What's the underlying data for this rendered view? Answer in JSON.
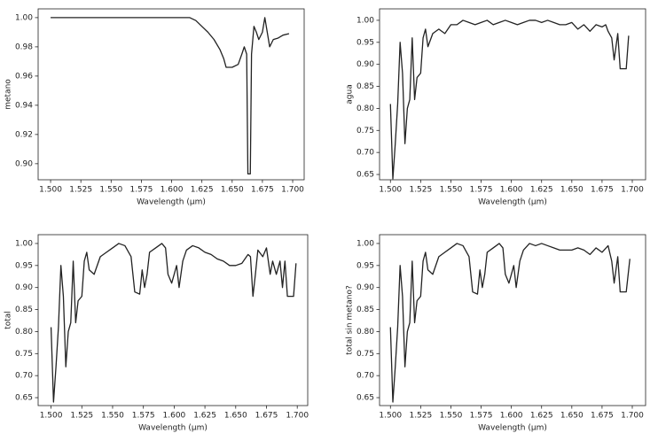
{
  "chart_data": [
    {
      "type": "line",
      "ylabel": "metano",
      "xlabel": "Wavelength (μm)",
      "xlim": [
        1.4897,
        1.7095
      ],
      "ylim": [
        0.889,
        1.006
      ],
      "xticks": [
        {
          "value": 1.5,
          "label": "1.500"
        },
        {
          "value": 1.525,
          "label": "1.525"
        },
        {
          "value": 1.55,
          "label": "1.550"
        },
        {
          "value": 1.575,
          "label": "1.575"
        },
        {
          "value": 1.6,
          "label": "1.600"
        },
        {
          "value": 1.625,
          "label": "1.625"
        },
        {
          "value": 1.65,
          "label": "1.650"
        },
        {
          "value": 1.675,
          "label": "1.675"
        },
        {
          "value": 1.7,
          "label": "1.700"
        }
      ],
      "yticks": [
        {
          "value": 0.9,
          "label": "0.90"
        },
        {
          "value": 0.92,
          "label": "0.92"
        },
        {
          "value": 0.94,
          "label": "0.94"
        },
        {
          "value": 0.96,
          "label": "0.96"
        },
        {
          "value": 0.98,
          "label": "0.98"
        },
        {
          "value": 1.0,
          "label": "1.00"
        }
      ],
      "x": [
        1.5,
        1.55,
        1.6,
        1.615,
        1.62,
        1.625,
        1.63,
        1.635,
        1.64,
        1.643,
        1.645,
        1.65,
        1.655,
        1.658,
        1.66,
        1.662,
        1.663,
        1.665,
        1.666,
        1.668,
        1.67,
        1.672,
        1.675,
        1.677,
        1.679,
        1.681,
        1.684,
        1.688,
        1.692,
        1.697
      ],
      "series": [
        {
          "color": "#222222",
          "values": [
            1.0,
            1.0,
            1.0,
            1.0,
            0.998,
            0.994,
            0.99,
            0.985,
            0.978,
            0.972,
            0.966,
            0.966,
            0.968,
            0.975,
            0.98,
            0.975,
            0.893,
            0.893,
            0.975,
            0.994,
            0.99,
            0.985,
            0.99,
            1.0,
            0.99,
            0.98,
            0.985,
            0.986,
            0.988,
            0.989
          ]
        }
      ]
    },
    {
      "type": "line",
      "ylabel": "agua",
      "xlabel": "Wavelength (μm)",
      "xlim": [
        1.491,
        1.711
      ],
      "ylim": [
        0.638,
        1.026
      ],
      "xticks": [
        {
          "value": 1.5,
          "label": "1.500"
        },
        {
          "value": 1.525,
          "label": "1.525"
        },
        {
          "value": 1.55,
          "label": "1.550"
        },
        {
          "value": 1.575,
          "label": "1.575"
        },
        {
          "value": 1.6,
          "label": "1.600"
        },
        {
          "value": 1.625,
          "label": "1.625"
        },
        {
          "value": 1.65,
          "label": "1.650"
        },
        {
          "value": 1.675,
          "label": "1.675"
        },
        {
          "value": 1.7,
          "label": "1.700"
        }
      ],
      "yticks": [
        {
          "value": 0.65,
          "label": "0.65"
        },
        {
          "value": 0.7,
          "label": "0.70"
        },
        {
          "value": 0.75,
          "label": "0.75"
        },
        {
          "value": 0.8,
          "label": "0.80"
        },
        {
          "value": 0.85,
          "label": "0.85"
        },
        {
          "value": 0.9,
          "label": "0.90"
        },
        {
          "value": 0.95,
          "label": "0.95"
        },
        {
          "value": 1.0,
          "label": "1.00"
        }
      ],
      "x": [
        1.5,
        1.502,
        1.504,
        1.506,
        1.508,
        1.51,
        1.512,
        1.514,
        1.516,
        1.518,
        1.52,
        1.522,
        1.525,
        1.527,
        1.529,
        1.531,
        1.535,
        1.54,
        1.545,
        1.55,
        1.555,
        1.56,
        1.565,
        1.57,
        1.575,
        1.58,
        1.585,
        1.59,
        1.595,
        1.6,
        1.605,
        1.61,
        1.615,
        1.62,
        1.625,
        1.63,
        1.635,
        1.64,
        1.645,
        1.65,
        1.655,
        1.66,
        1.665,
        1.67,
        1.675,
        1.678,
        1.68,
        1.683,
        1.685,
        1.688,
        1.69,
        1.695,
        1.697
      ],
      "series": [
        {
          "color": "#222222",
          "values": [
            0.81,
            0.64,
            0.72,
            0.81,
            0.95,
            0.88,
            0.72,
            0.8,
            0.82,
            0.96,
            0.82,
            0.87,
            0.88,
            0.96,
            0.98,
            0.94,
            0.97,
            0.98,
            0.97,
            0.99,
            0.99,
            1.0,
            0.995,
            0.99,
            0.995,
            1.0,
            0.99,
            0.995,
            1.0,
            0.995,
            0.99,
            0.995,
            1.0,
            1.0,
            0.995,
            1.0,
            0.995,
            0.99,
            0.99,
            0.995,
            0.98,
            0.99,
            0.975,
            0.99,
            0.985,
            0.99,
            0.975,
            0.96,
            0.91,
            0.97,
            0.89,
            0.89,
            0.965
          ]
        }
      ]
    },
    {
      "type": "line",
      "ylabel": "total",
      "xlabel": "Wavelength (μm)",
      "xlim": [
        1.4895,
        1.7085
      ],
      "ylim": [
        0.632,
        1.02
      ],
      "xticks": [
        {
          "value": 1.5,
          "label": "1.500"
        },
        {
          "value": 1.525,
          "label": "1.525"
        },
        {
          "value": 1.55,
          "label": "1.550"
        },
        {
          "value": 1.575,
          "label": "1.575"
        },
        {
          "value": 1.6,
          "label": "1.600"
        },
        {
          "value": 1.625,
          "label": "1.625"
        },
        {
          "value": 1.65,
          "label": "1.650"
        },
        {
          "value": 1.675,
          "label": "1.675"
        },
        {
          "value": 1.7,
          "label": "1.700"
        }
      ],
      "yticks": [
        {
          "value": 0.65,
          "label": "0.65"
        },
        {
          "value": 0.7,
          "label": "0.70"
        },
        {
          "value": 0.75,
          "label": "0.75"
        },
        {
          "value": 0.8,
          "label": "0.80"
        },
        {
          "value": 0.85,
          "label": "0.85"
        },
        {
          "value": 0.9,
          "label": "0.90"
        },
        {
          "value": 0.95,
          "label": "0.95"
        },
        {
          "value": 1.0,
          "label": "1.00"
        }
      ],
      "x": [
        1.5,
        1.502,
        1.504,
        1.506,
        1.508,
        1.51,
        1.512,
        1.514,
        1.516,
        1.518,
        1.52,
        1.522,
        1.525,
        1.527,
        1.529,
        1.531,
        1.535,
        1.54,
        1.545,
        1.55,
        1.555,
        1.56,
        1.565,
        1.568,
        1.572,
        1.574,
        1.576,
        1.578,
        1.58,
        1.585,
        1.59,
        1.593,
        1.595,
        1.598,
        1.6,
        1.602,
        1.604,
        1.607,
        1.61,
        1.615,
        1.62,
        1.625,
        1.63,
        1.635,
        1.64,
        1.645,
        1.65,
        1.655,
        1.66,
        1.662,
        1.664,
        1.666,
        1.668,
        1.672,
        1.675,
        1.678,
        1.68,
        1.683,
        1.686,
        1.688,
        1.69,
        1.692,
        1.697,
        1.699
      ],
      "series": [
        {
          "color": "#222222",
          "values": [
            0.81,
            0.64,
            0.72,
            0.81,
            0.95,
            0.88,
            0.72,
            0.8,
            0.82,
            0.96,
            0.82,
            0.87,
            0.88,
            0.96,
            0.98,
            0.94,
            0.93,
            0.97,
            0.98,
            0.99,
            1.0,
            0.995,
            0.97,
            0.89,
            0.885,
            0.94,
            0.9,
            0.93,
            0.98,
            0.99,
            1.0,
            0.99,
            0.93,
            0.91,
            0.93,
            0.95,
            0.9,
            0.96,
            0.985,
            0.995,
            0.99,
            0.98,
            0.975,
            0.965,
            0.96,
            0.95,
            0.95,
            0.955,
            0.975,
            0.97,
            0.88,
            0.93,
            0.985,
            0.97,
            0.99,
            0.93,
            0.96,
            0.93,
            0.96,
            0.9,
            0.96,
            0.88,
            0.88,
            0.955
          ]
        }
      ]
    },
    {
      "type": "line",
      "ylabel": "total sin metano?",
      "xlabel": "Wavelength (μm)",
      "xlim": [
        1.491,
        1.711
      ],
      "ylim": [
        0.632,
        1.02
      ],
      "xticks": [
        {
          "value": 1.5,
          "label": "1.500"
        },
        {
          "value": 1.525,
          "label": "1.525"
        },
        {
          "value": 1.55,
          "label": "1.550"
        },
        {
          "value": 1.575,
          "label": "1.575"
        },
        {
          "value": 1.6,
          "label": "1.600"
        },
        {
          "value": 1.625,
          "label": "1.625"
        },
        {
          "value": 1.65,
          "label": "1.650"
        },
        {
          "value": 1.675,
          "label": "1.675"
        },
        {
          "value": 1.7,
          "label": "1.700"
        }
      ],
      "yticks": [
        {
          "value": 0.65,
          "label": "0.65"
        },
        {
          "value": 0.7,
          "label": "0.70"
        },
        {
          "value": 0.75,
          "label": "0.75"
        },
        {
          "value": 0.8,
          "label": "0.80"
        },
        {
          "value": 0.85,
          "label": "0.85"
        },
        {
          "value": 0.9,
          "label": "0.90"
        },
        {
          "value": 0.95,
          "label": "0.95"
        },
        {
          "value": 1.0,
          "label": "1.00"
        }
      ],
      "x": [
        1.5,
        1.502,
        1.504,
        1.506,
        1.508,
        1.51,
        1.512,
        1.514,
        1.516,
        1.518,
        1.52,
        1.522,
        1.525,
        1.527,
        1.529,
        1.531,
        1.535,
        1.54,
        1.545,
        1.55,
        1.555,
        1.56,
        1.565,
        1.568,
        1.572,
        1.574,
        1.576,
        1.578,
        1.58,
        1.585,
        1.59,
        1.593,
        1.595,
        1.598,
        1.6,
        1.602,
        1.604,
        1.607,
        1.61,
        1.615,
        1.62,
        1.625,
        1.63,
        1.635,
        1.64,
        1.65,
        1.655,
        1.66,
        1.665,
        1.67,
        1.675,
        1.68,
        1.683,
        1.685,
        1.688,
        1.69,
        1.695,
        1.698
      ],
      "series": [
        {
          "color": "#222222",
          "values": [
            0.81,
            0.64,
            0.72,
            0.81,
            0.95,
            0.88,
            0.72,
            0.8,
            0.82,
            0.96,
            0.82,
            0.87,
            0.88,
            0.96,
            0.98,
            0.94,
            0.93,
            0.97,
            0.98,
            0.99,
            1.0,
            0.995,
            0.97,
            0.89,
            0.885,
            0.94,
            0.9,
            0.93,
            0.98,
            0.99,
            1.0,
            0.99,
            0.93,
            0.91,
            0.93,
            0.95,
            0.9,
            0.96,
            0.985,
            1.0,
            0.995,
            1.0,
            0.995,
            0.99,
            0.985,
            0.985,
            0.99,
            0.985,
            0.975,
            0.99,
            0.98,
            0.995,
            0.96,
            0.91,
            0.97,
            0.89,
            0.89,
            0.965
          ]
        }
      ]
    }
  ]
}
